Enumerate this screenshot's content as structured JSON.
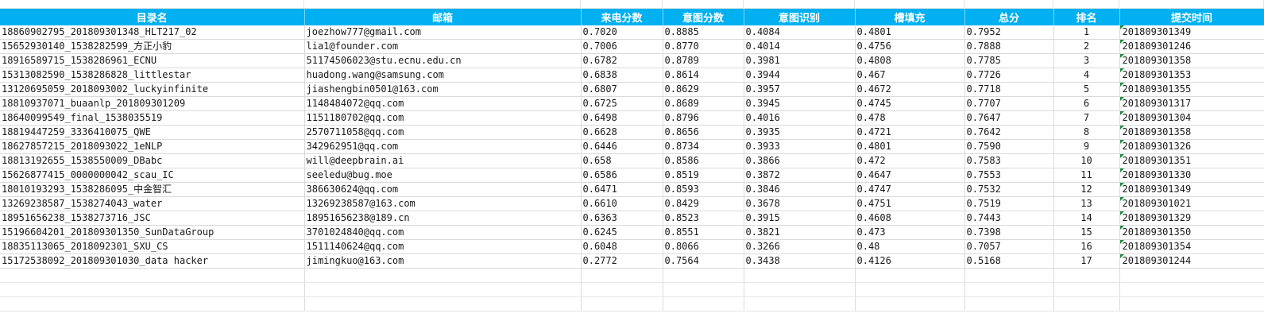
{
  "sheet": {
    "headers": [
      "目录名",
      "邮箱",
      "来电分数",
      "意图分数",
      "意图识别",
      "槽填充",
      "总分",
      "排名",
      "提交时间"
    ],
    "rows": [
      [
        "18860902795_201809301348_HLT217_02",
        "joezhow777@gmail.com",
        "0.7020",
        "0.8885",
        "0.4084",
        "0.4801",
        "0.7952",
        "1",
        "201809301349"
      ],
      [
        "15652930140_1538282599_方正小豹",
        "lia1@founder.com",
        "0.7006",
        "0.8770",
        "0.4014",
        "0.4756",
        "0.7888",
        "2",
        "201809301246"
      ],
      [
        "18916589715_1538286961_ECNU",
        "51174506023@stu.ecnu.edu.cn",
        "0.6782",
        "0.8789",
        "0.3981",
        "0.4808",
        "0.7785",
        "3",
        "201809301358"
      ],
      [
        "15313082590_1538286828_littlestar",
        "huadong.wang@samsung.com",
        "0.6838",
        "0.8614",
        "0.3944",
        "0.467",
        "0.7726",
        "4",
        "201809301353"
      ],
      [
        "13120695059_2018093002_luckyinfinite",
        "jiashengbin0501@163.com",
        "0.6807",
        "0.8629",
        "0.3957",
        "0.4672",
        "0.7718",
        "5",
        "201809301355"
      ],
      [
        "18810937071_buaanlp_201809301209",
        "1148484072@qq.com",
        "0.6725",
        "0.8689",
        "0.3945",
        "0.4745",
        "0.7707",
        "6",
        "201809301317"
      ],
      [
        "18640099549_final_1538035519",
        "1151180702@qq.com",
        "0.6498",
        "0.8796",
        "0.4016",
        "0.478",
        "0.7647",
        "7",
        "201809301304"
      ],
      [
        "18819447259_3336410075_QWE",
        "2570711058@qq.com",
        "0.6628",
        "0.8656",
        "0.3935",
        "0.4721",
        "0.7642",
        "8",
        "201809301358"
      ],
      [
        "18627857215_2018093022_1eNLP",
        "342962951@qq.com",
        "0.6446",
        "0.8734",
        "0.3933",
        "0.4801",
        "0.7590",
        "9",
        "201809301326"
      ],
      [
        "18813192655_1538550009_DBabc",
        "will@deepbrain.ai",
        "0.658",
        "0.8586",
        "0.3866",
        "0.472",
        "0.7583",
        "10",
        "201809301351"
      ],
      [
        "15626877415_0000000042_scau_IC",
        "seeledu@bug.moe",
        "0.6586",
        "0.8519",
        "0.3872",
        "0.4647",
        "0.7553",
        "11",
        "201809301330"
      ],
      [
        "18010193293_1538286095_中金智汇",
        "386630624@qq.com",
        "0.6471",
        "0.8593",
        "0.3846",
        "0.4747",
        "0.7532",
        "12",
        "201809301349"
      ],
      [
        "13269238587_1538274043_water",
        "13269238587@163.com",
        "0.6610",
        "0.8429",
        "0.3678",
        "0.4751",
        "0.7519",
        "13",
        "201809301021"
      ],
      [
        "18951656238_1538273716_JSC",
        "18951656238@189.cn",
        "0.6363",
        "0.8523",
        "0.3915",
        "0.4608",
        "0.7443",
        "14",
        "201809301329"
      ],
      [
        "15196604201_201809301350_SunDataGroup",
        "3701024840@qq.com",
        "0.6245",
        "0.8551",
        "0.3821",
        "0.473",
        "0.7398",
        "15",
        "201809301350"
      ],
      [
        "18835113065_2018092301_SXU_CS",
        "1511140624@qq.com",
        "0.6048",
        "0.8066",
        "0.3266",
        "0.48",
        "0.7057",
        "16",
        "201809301354"
      ],
      [
        "15172538092_201809301030_data hacker",
        "jimingkuo@163.com",
        "0.2772",
        "0.7564",
        "0.3438",
        "0.4126",
        "0.5168",
        "17",
        "201809301244"
      ]
    ]
  },
  "colors": {
    "header_bg": "#00b0f0",
    "header_text": "#ffffff",
    "grid": "#dadada",
    "flag": "#1e8e3e"
  }
}
